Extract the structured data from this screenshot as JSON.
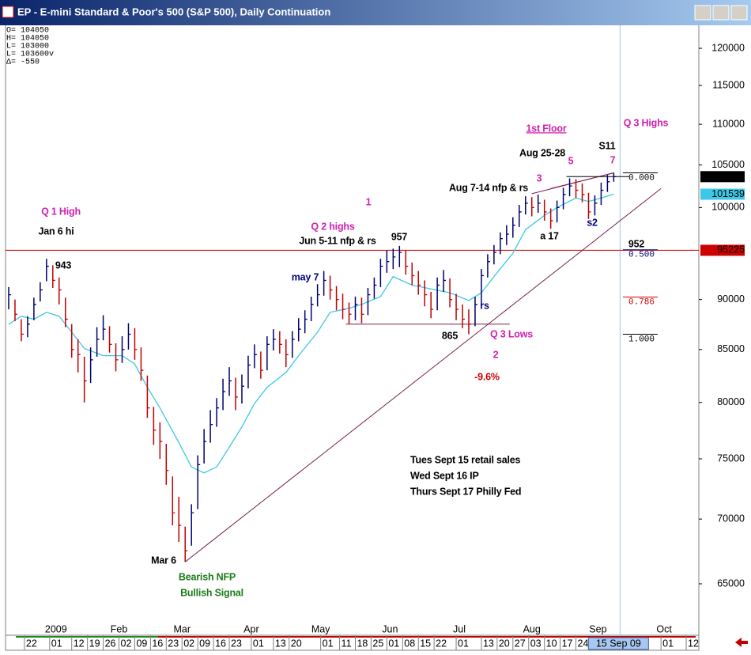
{
  "chart_data": {
    "type": "ohlc",
    "title": "EP - E-mini Standard & Poor's 500 (S&P 500), Daily Continuation",
    "info": [
      "O= 104050",
      "H= 104050",
      "L= 103000",
      "L= 103600v",
      "Δ=    -550"
    ],
    "log_scale": true,
    "ylim": [
      61450,
      123200
    ],
    "yticks": [
      120000,
      115000,
      110000,
      105000,
      100000,
      90000,
      85000,
      80000,
      75000,
      70000,
      65000
    ],
    "xlim": [
      -6,
      214
    ],
    "xticks": [
      {
        "value": 0,
        "label": "22"
      },
      {
        "value": 8,
        "label": "01"
      },
      {
        "value": 15,
        "label": "12"
      },
      {
        "value": 20,
        "label": "19"
      },
      {
        "value": 25,
        "label": "26"
      },
      {
        "value": 30,
        "label": "02"
      },
      {
        "value": 35,
        "label": "09"
      },
      {
        "value": 40,
        "label": "16"
      },
      {
        "value": 45,
        "label": "23"
      },
      {
        "value": 50,
        "label": "02"
      },
      {
        "value": 55,
        "label": "09"
      },
      {
        "value": 60,
        "label": "16"
      },
      {
        "value": 65,
        "label": "23"
      },
      {
        "value": 72,
        "label": "01"
      },
      {
        "value": 79,
        "label": "13"
      },
      {
        "value": 84,
        "label": "20"
      },
      {
        "value": 94,
        "label": "01"
      },
      {
        "value": 100,
        "label": "11"
      },
      {
        "value": 105,
        "label": "18"
      },
      {
        "value": 110,
        "label": "25"
      },
      {
        "value": 115,
        "label": "01"
      },
      {
        "value": 120,
        "label": "08"
      },
      {
        "value": 125,
        "label": "15"
      },
      {
        "value": 130,
        "label": "22"
      },
      {
        "value": 137,
        "label": "01"
      },
      {
        "value": 145,
        "label": "13"
      },
      {
        "value": 150,
        "label": "20"
      },
      {
        "value": 155,
        "label": "27"
      },
      {
        "value": 160,
        "label": "03"
      },
      {
        "value": 165,
        "label": "10"
      },
      {
        "value": 170,
        "label": "17"
      },
      {
        "value": 175,
        "label": "24"
      },
      {
        "value": 202,
        "label": "01"
      },
      {
        "value": 210,
        "label": "12"
      }
    ],
    "month_labels": [
      {
        "value": 10,
        "label": "2009"
      },
      {
        "value": 30,
        "label": "Feb"
      },
      {
        "value": 50,
        "label": "Mar"
      },
      {
        "value": 72,
        "label": "Apr"
      },
      {
        "value": 94,
        "label": "May"
      },
      {
        "value": 116,
        "label": "Jun"
      },
      {
        "value": 138,
        "label": "Jul"
      },
      {
        "value": 161,
        "label": "Aug"
      },
      {
        "value": 182,
        "label": "Sep"
      },
      {
        "value": 203,
        "label": "Oct"
      }
    ],
    "cursor": {
      "value": 189,
      "label": "15 Sep 09"
    },
    "up_color": "#00006e",
    "down_color": "#c00000",
    "x": [
      -5,
      -3,
      -1,
      1,
      3,
      5,
      7,
      9,
      11,
      13,
      15,
      17,
      19,
      21,
      23,
      25,
      27,
      29,
      31,
      33,
      35,
      37,
      39,
      41,
      43,
      45,
      47,
      49,
      51,
      53,
      55,
      57,
      59,
      61,
      63,
      65,
      67,
      69,
      71,
      73,
      75,
      77,
      79,
      81,
      83,
      85,
      87,
      89,
      91,
      93,
      95,
      97,
      99,
      101,
      103,
      105,
      107,
      109,
      111,
      113,
      115,
      117,
      119,
      121,
      123,
      125,
      127,
      129,
      131,
      133,
      135,
      137,
      139,
      141,
      143,
      145,
      147,
      149,
      151,
      153,
      155,
      157,
      159,
      161,
      163,
      165,
      167,
      169,
      171,
      173,
      175,
      177,
      179,
      181,
      183,
      185,
      187
    ],
    "highs": [
      91300,
      90000,
      88000,
      88300,
      90200,
      91800,
      94300,
      93600,
      92300,
      90200,
      87500,
      86000,
      84300,
      85200,
      87200,
      88400,
      87300,
      85600,
      86300,
      87600,
      87100,
      85200,
      82500,
      79600,
      78200,
      76300,
      73500,
      71800,
      69400,
      71200,
      75300,
      77600,
      79300,
      80400,
      82200,
      83300,
      82300,
      82600,
      84400,
      85500,
      84800,
      86300,
      87000,
      86800,
      86000,
      86800,
      88100,
      88900,
      90300,
      91600,
      93000,
      92500,
      91400,
      90600,
      89700,
      90300,
      90200,
      91200,
      92300,
      94300,
      95200,
      95400,
      95700,
      95200,
      93900,
      93000,
      92000,
      90800,
      92300,
      93100,
      92200,
      90600,
      89500,
      89000,
      90300,
      93200,
      94800,
      95800,
      97200,
      98000,
      98900,
      100300,
      101300,
      101200,
      101500,
      100900,
      99900,
      100800,
      102300,
      103400,
      103300,
      102800,
      101700,
      101400,
      102900,
      103800,
      104050
    ],
    "lows": [
      89000,
      87800,
      85800,
      86200,
      87900,
      89800,
      91900,
      91200,
      89500,
      87200,
      84200,
      82800,
      80000,
      81800,
      84300,
      85900,
      84700,
      82900,
      83700,
      85000,
      84000,
      82000,
      78600,
      76200,
      75000,
      72800,
      69500,
      68200,
      66650,
      67900,
      70800,
      74600,
      76400,
      77800,
      79300,
      80600,
      79300,
      79900,
      81300,
      83200,
      82200,
      83000,
      84900,
      84600,
      83300,
      84200,
      85800,
      86600,
      87800,
      89300,
      90400,
      90000,
      88900,
      88000,
      87500,
      87900,
      87600,
      88400,
      90100,
      91300,
      92800,
      93200,
      93400,
      92600,
      91500,
      90500,
      89300,
      88100,
      88900,
      90800,
      89200,
      87900,
      87100,
      86500,
      87300,
      89400,
      92300,
      93700,
      94800,
      95800,
      96600,
      97800,
      99200,
      99000,
      99400,
      98500,
      97600,
      98300,
      99800,
      101300,
      101100,
      100600,
      98700,
      99100,
      100300,
      101800,
      103000
    ],
    "closes": [
      90500,
      88500,
      86500,
      87500,
      89500,
      91000,
      93500,
      92000,
      91000,
      88000,
      85000,
      84500,
      82000,
      84000,
      86000,
      87000,
      85500,
      84000,
      85000,
      86500,
      85000,
      83000,
      79500,
      77500,
      76500,
      74000,
      70500,
      69500,
      67500,
      70500,
      74500,
      76500,
      78000,
      79500,
      81000,
      82000,
      80500,
      81500,
      83500,
      84500,
      83000,
      85500,
      86000,
      85500,
      84500,
      86000,
      87000,
      88000,
      89500,
      90500,
      92000,
      91000,
      90000,
      89000,
      88500,
      89500,
      88500,
      90500,
      91500,
      93500,
      94000,
      94500,
      95000,
      93500,
      92500,
      91500,
      90500,
      89000,
      91500,
      92000,
      90000,
      89000,
      88000,
      87500,
      89500,
      92500,
      94000,
      95000,
      96500,
      97000,
      98000,
      99500,
      100500,
      100000,
      100500,
      99500,
      98500,
      100000,
      101500,
      102500,
      102000,
      101500,
      99500,
      100500,
      102000,
      103000,
      103600
    ],
    "ma": {
      "color": "#3cc8e6",
      "x": [
        -5,
        -1,
        3,
        7,
        11,
        15,
        19,
        25,
        31,
        35,
        39,
        43,
        49,
        53,
        57,
        61,
        65,
        69,
        73,
        77,
        83,
        87,
        93,
        97,
        103,
        107,
        113,
        117,
        123,
        129,
        135,
        141,
        145,
        149,
        155,
        159,
        165,
        169,
        175,
        179,
        183,
        187
      ],
      "values": [
        87500,
        88300,
        88000,
        88700,
        88300,
        86700,
        85100,
        84400,
        84400,
        83600,
        81400,
        79500,
        76400,
        74300,
        73800,
        74300,
        76000,
        77800,
        79900,
        81400,
        82800,
        84400,
        86700,
        88700,
        89100,
        89500,
        90300,
        92400,
        91500,
        91100,
        90700,
        89900,
        90700,
        92400,
        94900,
        97500,
        99100,
        100000,
        101100,
        100700,
        101100,
        101539
      ]
    },
    "hline": {
      "value": 95225,
      "color": "#cc0000"
    },
    "segments": [
      {
        "x": [
          51,
          202
        ],
        "y": [
          66650,
          102200
        ],
        "color": "#7a1f4e"
      },
      {
        "x": [
          102,
          154
        ],
        "y": [
          87500,
          87500
        ],
        "color": "#7a1f4e"
      },
      {
        "x": [
          161,
          187
        ],
        "y": [
          101600,
          104050
        ],
        "color": "#7a1f4e"
      },
      {
        "x": [
          167,
          187
        ],
        "y": [
          102200,
          104050
        ],
        "color": "#7a1f4e"
      },
      {
        "x": [
          172,
          192
        ],
        "y": [
          103600,
          103600
        ],
        "color": "#000000"
      }
    ],
    "fib_levels": [
      {
        "label": "0.000",
        "value": 104050,
        "color": "#000000"
      },
      {
        "label": "0.500",
        "value": 95275,
        "color": "#00006e"
      },
      {
        "label": "0.786",
        "value": 90256,
        "color": "#cc0000"
      },
      {
        "label": "1.000",
        "value": 86500,
        "color": "#000000"
      }
    ],
    "annotations": [
      {
        "text": "Q 1 High",
        "color": "#d020b0"
      },
      {
        "text": "Jan 6 hi",
        "color": "#000000"
      },
      {
        "text": "943",
        "color": "#000000"
      },
      {
        "text": "Q 2 highs",
        "color": "#d020b0"
      },
      {
        "text": "Jun 5-11 nfp & rs",
        "color": "#000000"
      },
      {
        "text": "957",
        "color": "#000000"
      },
      {
        "text": "may 7",
        "color": "#00007a"
      },
      {
        "text": "1",
        "color": "#d020b0"
      },
      {
        "text": "1st Floor",
        "color": "#d020b0"
      },
      {
        "text": "Q 3 Highs",
        "color": "#d020b0"
      },
      {
        "text": "Aug 25-28",
        "color": "#000000"
      },
      {
        "text": "S11",
        "color": "#000000"
      },
      {
        "text": "5",
        "color": "#d020b0"
      },
      {
        "text": "7",
        "color": "#d020b0"
      },
      {
        "text": "3",
        "color": "#d020b0"
      },
      {
        "text": "Aug 7-14 nfp & rs",
        "color": "#000000"
      },
      {
        "text": "a 17",
        "color": "#000000"
      },
      {
        "text": "s2",
        "color": "#00007a"
      },
      {
        "text": "952",
        "color": "#000000"
      },
      {
        "text": "rs",
        "color": "#00007a"
      },
      {
        "text": "865",
        "color": "#000000"
      },
      {
        "text": "Q 3 Lows",
        "color": "#d020b0"
      },
      {
        "text": "2",
        "color": "#d020b0"
      },
      {
        "text": "-9.6%",
        "color": "#cc0000"
      },
      {
        "text": "Tues Sept 15 retail sales",
        "color": "#000000"
      },
      {
        "text": "Wed Sept 16 IP",
        "color": "#000000"
      },
      {
        "text": "Thurs Sept 17 Philly Fed",
        "color": "#000000"
      },
      {
        "text": "Mar 6",
        "color": "#000000"
      },
      {
        "text": "Bearish NFP",
        "color": "#1a7a1a"
      },
      {
        "text": "Bullish Signal",
        "color": "#1a7a1a"
      }
    ]
  }
}
